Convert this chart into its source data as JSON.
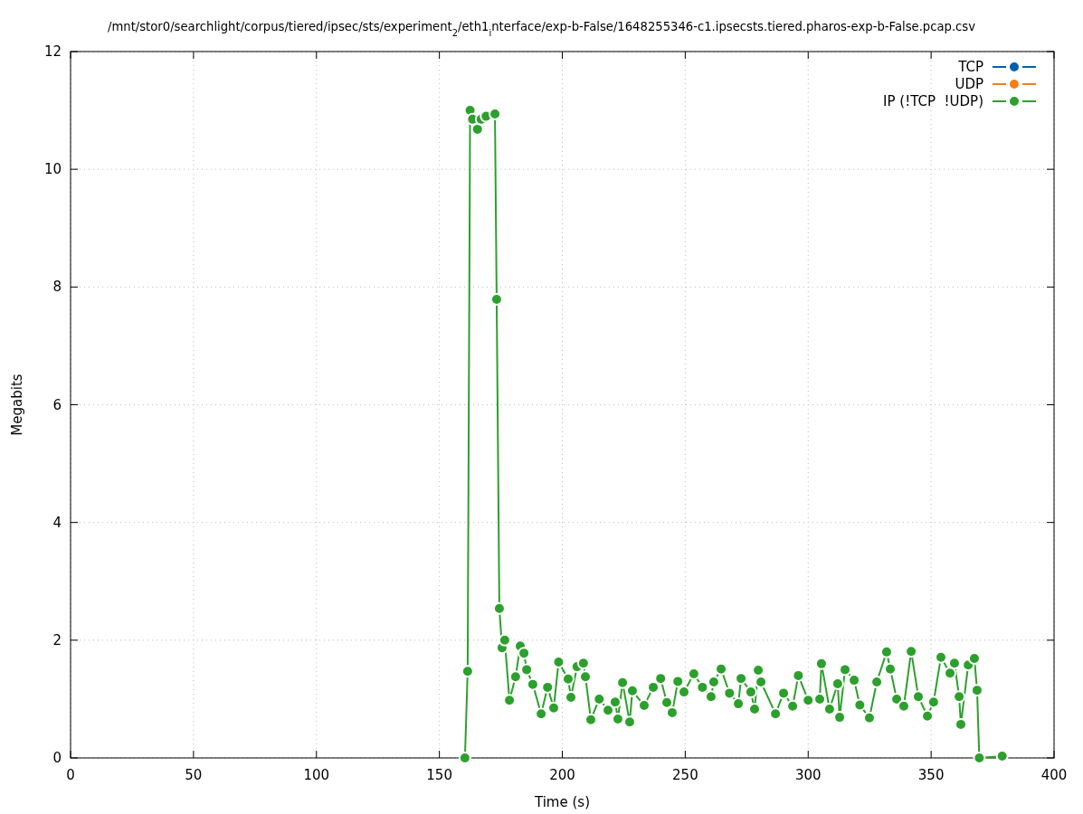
{
  "chart_data": {
    "type": "line",
    "title": "/mnt/stor0/searchlight/corpus/tiered/ipsec/sts/experiment$_{2}$/eth1$_{i}$nterface/exp-b-False/1648255346-c1.ipsecsts.tiered.pharos-exp-b-False.pcap.csv",
    "xlabel": "Time (s)",
    "ylabel": "Megabits",
    "xlim": [
      0,
      400
    ],
    "xticks": [
      0,
      50,
      100,
      150,
      200,
      250,
      300,
      350,
      400
    ],
    "ylim": [
      0,
      12
    ],
    "yticks": [
      0,
      2,
      4,
      6,
      8,
      10,
      12
    ],
    "grid": true,
    "legend": "top right",
    "marker": "circle",
    "line_style": "solid",
    "series": [
      {
        "name": "TCP",
        "color": "#0060ad"
      },
      {
        "name": "UDP",
        "color": "#f57f17"
      },
      {
        "name": "IP (!TCP  !UDP)",
        "color": "#2ca02c",
        "x": [
          160.4,
          161.5,
          162.5,
          163.5,
          165.5,
          167,
          169,
          172.6,
          173.3,
          174.4,
          175.5,
          176.6,
          178.5,
          181,
          182.9,
          184.4,
          185.5,
          188,
          191.4,
          194,
          196.5,
          198.5,
          202.4,
          203.5,
          206,
          208.6,
          209.4,
          211.6,
          215,
          218.6,
          221.5,
          222.6,
          224.5,
          227.4,
          228.5,
          233.3,
          237,
          240,
          242.5,
          244.7,
          247,
          249.5,
          253.5,
          257,
          260.5,
          261.6,
          264.6,
          268,
          271.6,
          272.7,
          276.7,
          278.2,
          279.7,
          280.8,
          286.7,
          290,
          293.7,
          296,
          300,
          304.7,
          305.4,
          308.7,
          312,
          312.8,
          315,
          318.7,
          321,
          324.9,
          327.9,
          331.9,
          333.4,
          336,
          338.9,
          341.9,
          344.8,
          348.5,
          351,
          354,
          357.7,
          359.5,
          361.4,
          362.1,
          365.1,
          367.6,
          368.7,
          369.6,
          378.9
        ],
        "values": [
          0,
          1.47,
          11.0,
          10.85,
          10.68,
          10.85,
          10.9,
          10.94,
          7.79,
          2.54,
          1.87,
          2.0,
          0.98,
          1.38,
          1.9,
          1.78,
          1.5,
          1.25,
          0.75,
          1.2,
          0.85,
          1.63,
          1.34,
          1.03,
          1.55,
          1.61,
          1.38,
          0.65,
          1.0,
          0.81,
          0.95,
          0.66,
          1.28,
          0.61,
          1.14,
          0.89,
          1.2,
          1.35,
          0.94,
          0.77,
          1.3,
          1.12,
          1.43,
          1.2,
          1.04,
          1.29,
          1.51,
          1.1,
          0.92,
          1.35,
          1.12,
          0.83,
          1.49,
          1.29,
          0.75,
          1.1,
          0.88,
          1.4,
          0.98,
          1.0,
          1.6,
          0.83,
          1.26,
          0.69,
          1.5,
          1.32,
          0.9,
          0.68,
          1.29,
          1.8,
          1.51,
          1.0,
          0.88,
          1.81,
          1.04,
          0.71,
          0.95,
          1.71,
          1.44,
          1.61,
          1.04,
          0.57,
          1.58,
          1.69,
          1.15,
          0,
          0.03
        ]
      }
    ]
  }
}
